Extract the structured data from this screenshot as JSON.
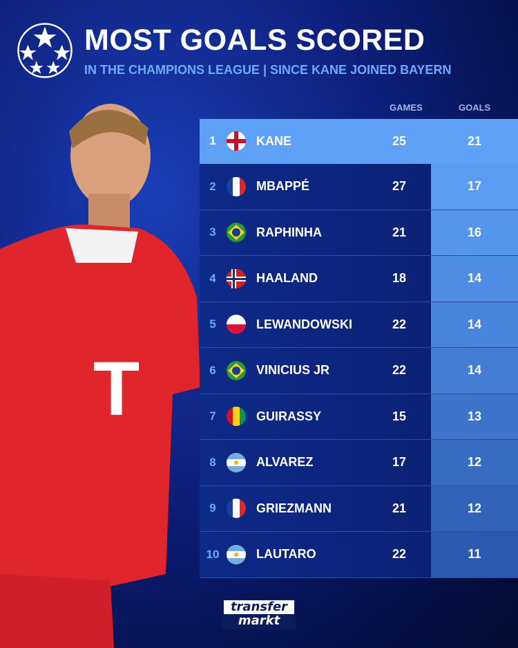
{
  "header": {
    "title": "MOST GOALS SCORED",
    "subtitle": "IN THE CHAMPIONS LEAGUE | SINCE KANE JOINED BAYERN"
  },
  "branding": {
    "logo_text": "transfer markt"
  },
  "colors": {
    "highlight": "#5ea1f7",
    "row": "#0c2a88",
    "subtitle": "#6fa8ff"
  },
  "chart_data": {
    "type": "table",
    "columns": [
      "GAMES",
      "GOALS"
    ],
    "rows": [
      {
        "rank": "1",
        "flag": "england",
        "name": "KANE",
        "games": "25",
        "goals": "21"
      },
      {
        "rank": "2",
        "flag": "france",
        "name": "MBAPPÉ",
        "games": "27",
        "goals": "17"
      },
      {
        "rank": "3",
        "flag": "brazil",
        "name": "RAPHINHA",
        "games": "21",
        "goals": "16"
      },
      {
        "rank": "4",
        "flag": "norway",
        "name": "HAALAND",
        "games": "18",
        "goals": "14"
      },
      {
        "rank": "5",
        "flag": "poland",
        "name": "LEWANDOWSKI",
        "games": "22",
        "goals": "14"
      },
      {
        "rank": "6",
        "flag": "brazil",
        "name": "VINICIUS JR",
        "games": "22",
        "goals": "14"
      },
      {
        "rank": "7",
        "flag": "guinea",
        "name": "GUIRASSY",
        "games": "15",
        "goals": "13"
      },
      {
        "rank": "8",
        "flag": "argentina",
        "name": "ALVAREZ",
        "games": "17",
        "goals": "12"
      },
      {
        "rank": "9",
        "flag": "france",
        "name": "GRIEZMANN",
        "games": "21",
        "goals": "12"
      },
      {
        "rank": "10",
        "flag": "argentina",
        "name": "LAUTARO",
        "games": "22",
        "goals": "11"
      }
    ]
  }
}
